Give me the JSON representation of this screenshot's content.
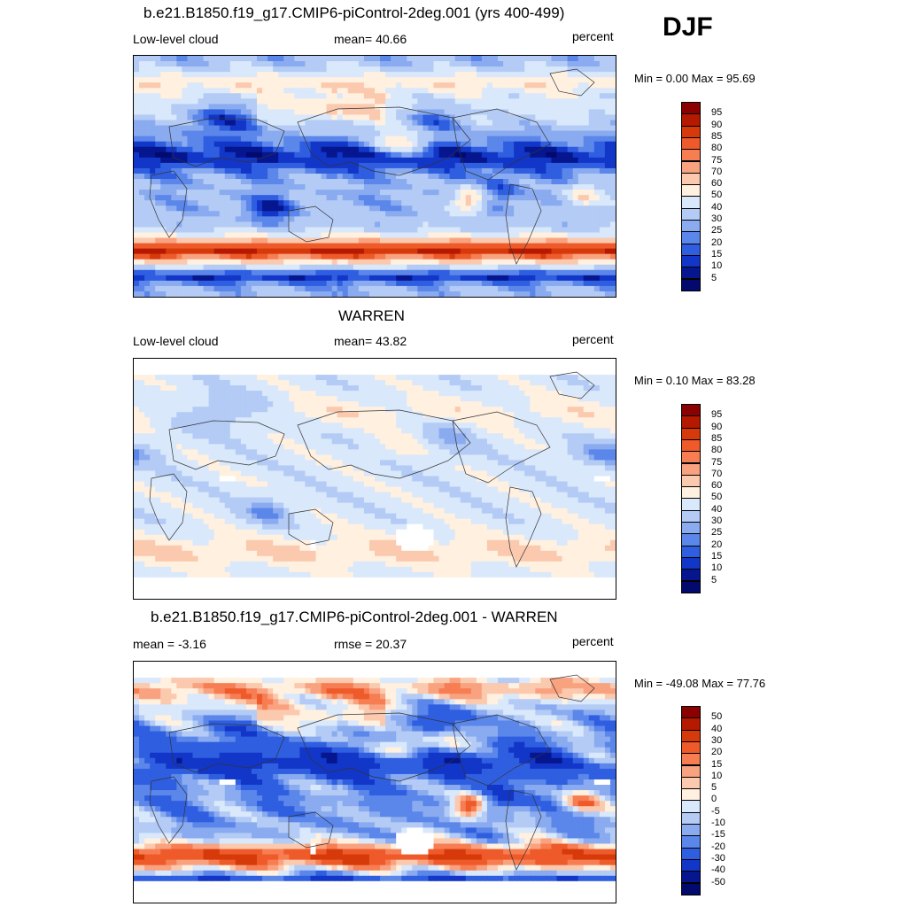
{
  "season": "DJF",
  "panels": [
    {
      "title": "b.e21.B1850.f19_g17.CMIP6-piControl-2deg.001 (yrs 400-499)",
      "left_label": "Low-level cloud",
      "center_label": "mean=  40.66",
      "right_label": "percent",
      "minmax": "Min =   0.00 Max =  95.69",
      "colorbar_labels": [
        "95",
        "90",
        "85",
        "80",
        "75",
        "70",
        "60",
        "50",
        "40",
        "30",
        "25",
        "20",
        "15",
        "10",
        "5"
      ],
      "field": "model"
    },
    {
      "title": "WARREN",
      "left_label": "Low-level cloud",
      "center_label": "mean=  43.82",
      "right_label": "percent",
      "minmax": "Min =   0.10 Max =  83.28",
      "colorbar_labels": [
        "95",
        "90",
        "85",
        "80",
        "75",
        "70",
        "60",
        "50",
        "40",
        "30",
        "25",
        "20",
        "15",
        "10",
        "5"
      ],
      "field": "obs"
    },
    {
      "title": "b.e21.B1850.f19_g17.CMIP6-piControl-2deg.001 - WARREN",
      "left_label": "mean =  -3.16",
      "center_label": "rmse =  20.37",
      "right_label": "percent",
      "minmax": "Min = -49.08 Max =  77.76",
      "colorbar_labels": [
        "50",
        "40",
        "30",
        "20",
        "15",
        "10",
        "5",
        "0",
        "-5",
        "-10",
        "-15",
        "-20",
        "-30",
        "-40",
        "-50"
      ],
      "field": "diff"
    }
  ],
  "colorbar_colors": [
    "#8b0000",
    "#b51a00",
    "#d63a0a",
    "#ef5a2a",
    "#f77d52",
    "#f9a27f",
    "#fbc9ae",
    "#fff0e0",
    "#d9e8fb",
    "#b3cbf5",
    "#8aabef",
    "#5b86ea",
    "#2f5fe0",
    "#1236c8",
    "#06168f",
    "#020a6e"
  ]
}
